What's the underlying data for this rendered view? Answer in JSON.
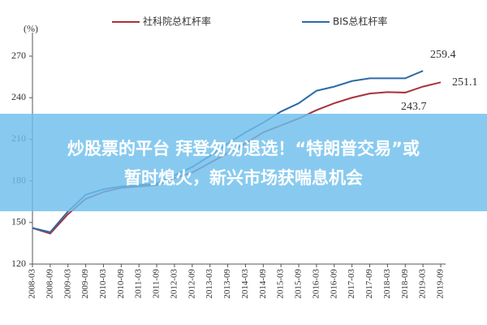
{
  "chart_data": {
    "type": "line",
    "y_label": "(%)",
    "categories": [
      "2008-03",
      "2008-09",
      "2009-03",
      "2009-09",
      "2010-03",
      "2010-09",
      "2011-03",
      "2011-09",
      "2012-03",
      "2012-09",
      "2013-03",
      "2013-09",
      "2014-03",
      "2014-09",
      "2015-03",
      "2015-09",
      "2016-03",
      "2016-09",
      "2017-03",
      "2017-09",
      "2018-03",
      "2018-09",
      "2019-03",
      "2019-09"
    ],
    "series": [
      {
        "name": "社科院总杠杆率",
        "color": "#a8323c",
        "values": [
          146,
          142,
          156,
          167,
          172,
          175,
          176,
          177,
          182,
          186,
          193,
          200,
          207,
          215,
          220,
          225,
          231,
          236,
          240,
          243,
          244,
          243.7,
          248,
          251.1
        ]
      },
      {
        "name": "BIS总杠杆率",
        "color": "#2d6aa8",
        "values": [
          146,
          143,
          158,
          170,
          174,
          176,
          177,
          178,
          184,
          190,
          198,
          207,
          215,
          222,
          230,
          236,
          245,
          248,
          252,
          254,
          254,
          254,
          259.4,
          null
        ]
      }
    ],
    "annotations": [
      "259.4",
      "251.1",
      "243.7"
    ],
    "ylim": [
      120,
      280
    ],
    "yticks": [
      120,
      150,
      180,
      210,
      240,
      270
    ],
    "grid": false
  },
  "banner": {
    "line1": "炒股票的平台 拜登匆匆退选！“特朗普交易”或",
    "line2": "暂时熄火，新兴市场获喘息机会"
  }
}
